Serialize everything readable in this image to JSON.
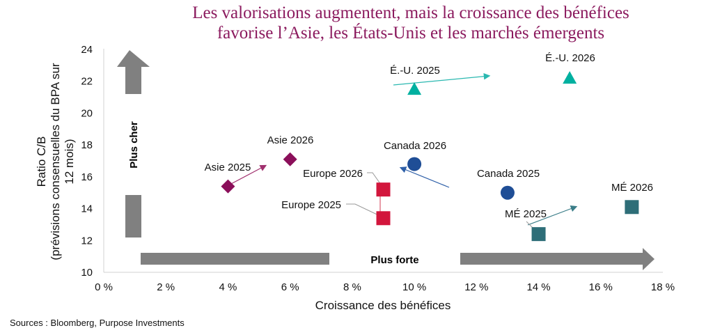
{
  "title_lines": [
    "Les valorisations augmentent, mais la croissance des bénéfices",
    "favorise l’Asie, les États-Unis et les marchés émergents"
  ],
  "sources": "Sources : Bloomberg, Purpose Investments",
  "chart_data": {
    "type": "scatter",
    "title": "Les valorisations augmentent, mais la croissance des bénéfices favorise l’Asie, les États-Unis et les marchés émergents",
    "xlabel": "Croissance des bénéfices",
    "ylabel_lines": [
      "Ratio C/B",
      "(prévisions consensuelles du BPA sur",
      "12 mois)"
    ],
    "xlim": [
      0,
      18
    ],
    "ylim": [
      10,
      24
    ],
    "x_ticks": [
      "0 %",
      "2 %",
      "4 %",
      "6 %",
      "8 %",
      "10 %",
      "12 %",
      "14 %",
      "16 %",
      "18 %"
    ],
    "y_ticks": [
      "10",
      "12",
      "14",
      "16",
      "18",
      "20",
      "22",
      "24"
    ],
    "grid": false,
    "annotations": {
      "y_arrow": "Plus cher",
      "x_arrow": "Plus forte"
    },
    "points": [
      {
        "label": "Asie 2025",
        "x": 4,
        "y": 15.4,
        "marker": "diamond",
        "color": "#8b0f5a"
      },
      {
        "label": "Asie 2026",
        "x": 6,
        "y": 17.1,
        "marker": "diamond",
        "color": "#8b0f5a"
      },
      {
        "label": "Europe 2026",
        "x": 9,
        "y": 15.2,
        "marker": "square",
        "color": "#d2163c"
      },
      {
        "label": "Europe 2025",
        "x": 9,
        "y": 13.4,
        "marker": "square",
        "color": "#d2163c"
      },
      {
        "label": "Canada 2026",
        "x": 10,
        "y": 16.8,
        "marker": "circle",
        "color": "#1f4e96"
      },
      {
        "label": "Canada 2025",
        "x": 13,
        "y": 15.0,
        "marker": "circle",
        "color": "#1f4e96"
      },
      {
        "label": "É.-U. 2025",
        "x": 10,
        "y": 21.5,
        "marker": "triangle",
        "color": "#00b0a0"
      },
      {
        "label": "É.-U. 2026",
        "x": 15,
        "y": 22.2,
        "marker": "triangle",
        "color": "#00b0a0"
      },
      {
        "label": "MÉ 2025",
        "x": 14,
        "y": 12.4,
        "marker": "square",
        "color": "#2e6e78"
      },
      {
        "label": "MÉ 2026",
        "x": 17,
        "y": 14.1,
        "marker": "square",
        "color": "#2e6e78"
      }
    ]
  }
}
